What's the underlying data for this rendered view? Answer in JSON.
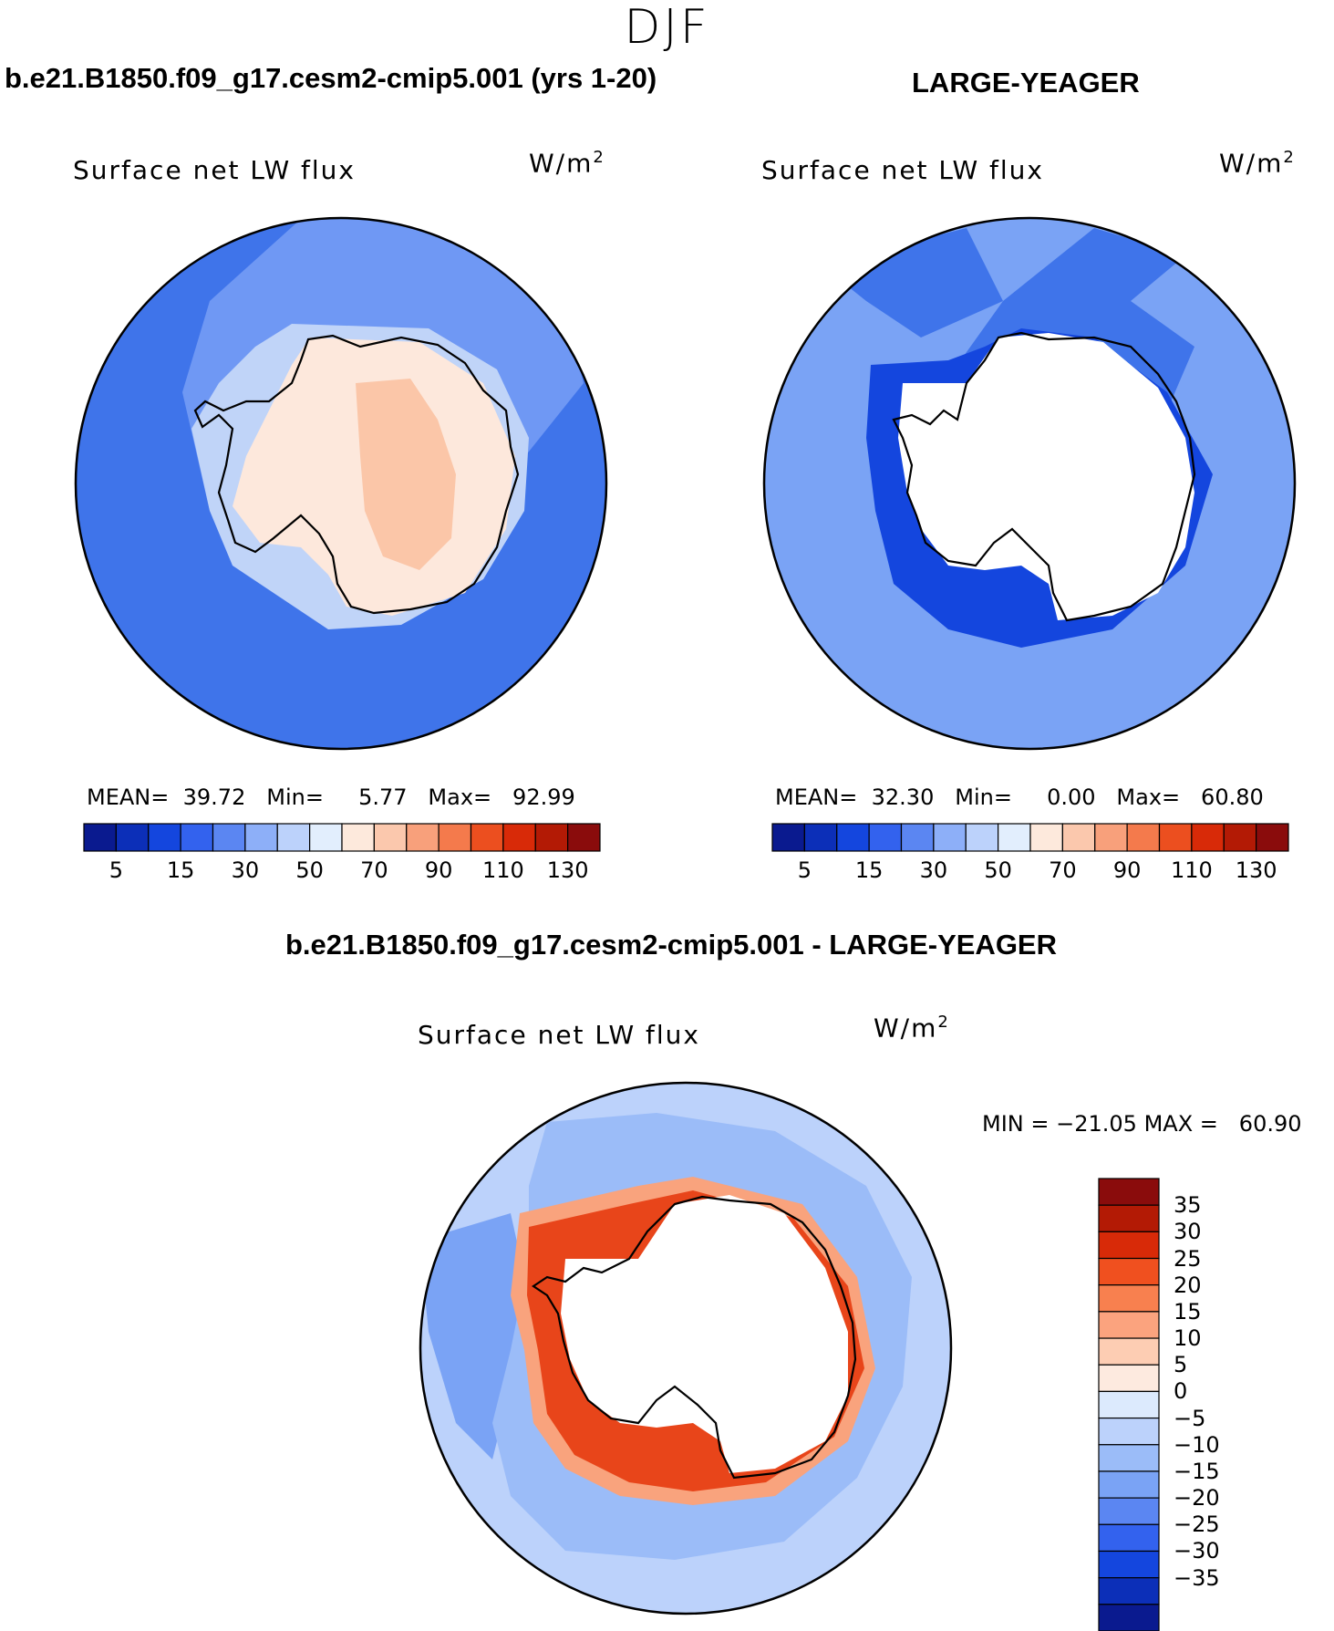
{
  "figure_title": "DJF",
  "panels": [
    {
      "case": "b.e21.B1850.f09_g17.cesm2-cmip5.001 (yrs 1-20)",
      "field": "Surface net LW flux",
      "units": "W/m",
      "units_sup": "2",
      "stats": {
        "mean_label": "MEAN=",
        "mean": "39.72",
        "min_label": "Min=",
        "min": "5.77",
        "max_label": "Max=",
        "max": "92.99"
      },
      "colorbar": {
        "colors": [
          "#0a1a8f",
          "#0c2fb8",
          "#1446de",
          "#3362ee",
          "#5b86f2",
          "#8daff8",
          "#bcd2fb",
          "#e2eefd",
          "#fde9dc",
          "#fbc8ad",
          "#f8a07b",
          "#f47a4c",
          "#ec4f1f",
          "#d82a08",
          "#b31a05",
          "#8a0c0c"
        ],
        "tick_labels": [
          "5",
          "15",
          "30",
          "50",
          "70",
          "90",
          "110",
          "130"
        ]
      },
      "map": {
        "ocean_color": "#3f74ea",
        "outer_band_color": "#6f98f4",
        "shelf_color": "#c0d4f8",
        "continent_color": "#fde8dc",
        "interior_color": "#fbc6a8"
      }
    },
    {
      "case": "LARGE-YEAGER",
      "field": "Surface net LW flux",
      "units": "W/m",
      "units_sup": "2",
      "stats": {
        "mean_label": "MEAN=",
        "mean": "32.30",
        "min_label": "Min=",
        "min": "0.00",
        "max_label": "Max=",
        "max": "60.80"
      },
      "colorbar": {
        "colors": [
          "#0a1a8f",
          "#0c2fb8",
          "#1446de",
          "#3362ee",
          "#5b86f2",
          "#8daff8",
          "#bcd2fb",
          "#e2eefd",
          "#fde9dc",
          "#fbc8ad",
          "#f8a07b",
          "#f47a4c",
          "#ec4f1f",
          "#d82a08",
          "#b31a05",
          "#8a0c0c"
        ],
        "tick_labels": [
          "5",
          "15",
          "30",
          "50",
          "70",
          "90",
          "110",
          "130"
        ]
      },
      "map": {
        "ocean_color": "#7aa3f5",
        "band_color": "#3f74ea",
        "coast_color": "#1446de",
        "continent_color": "#ffffff"
      }
    }
  ],
  "difference": {
    "title": "b.e21.B1850.f09_g17.cesm2-cmip5.001 - LARGE-YEAGER",
    "field": "Surface net LW flux",
    "units": "W/m",
    "units_sup": "2",
    "stats": {
      "min_label": "MIN =",
      "min": "−21.05",
      "max_label": "MAX =",
      "max": "60.90"
    },
    "colorbar": {
      "colors": [
        "#8a0c0c",
        "#b31a05",
        "#d82a08",
        "#f0501f",
        "#f8804f",
        "#fba37e",
        "#fdcdb3",
        "#fdeadf",
        "#dceafd",
        "#bcd2fb",
        "#9bbcf8",
        "#7aa3f5",
        "#5b86f2",
        "#3362ee",
        "#1446de",
        "#0c2fb8",
        "#0a1a8f"
      ],
      "tick_labels": [
        "35",
        "30",
        "25",
        "20",
        "15",
        "10",
        "5",
        "0",
        "−5",
        "−10",
        "−15",
        "−20",
        "−25",
        "−30",
        "−35"
      ]
    },
    "map": {
      "ocean_color": "#bcd2fb",
      "band_color": "#9bbcf8",
      "west_color": "#7aa3f5",
      "positive_color": "#e8451a",
      "positive_light": "#f9a37d",
      "continent_color": "#ffffff"
    }
  }
}
